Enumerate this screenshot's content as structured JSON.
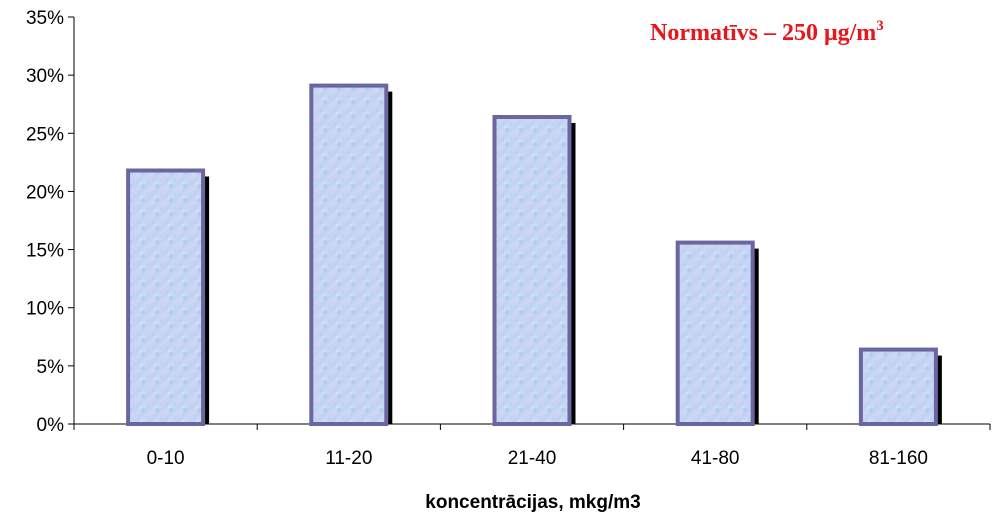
{
  "chart_data": {
    "type": "bar",
    "categories": [
      "0-10",
      "11-20",
      "21-40",
      "41-80",
      "81-160"
    ],
    "values": [
      21.8,
      29.1,
      26.4,
      15.6,
      6.4
    ],
    "xlabel": "koncentrācijas, mkg/m3",
    "ylabel": "",
    "ylim": [
      0,
      35
    ],
    "yticks": [
      "0%",
      "5%",
      "10%",
      "15%",
      "20%",
      "25%",
      "30%",
      "35%"
    ],
    "grid": false,
    "annotation": {
      "text": "Normatīvs – 250 μg/m",
      "superscript": "3",
      "color": "#e8161c"
    },
    "colors": {
      "bar_fill": "#c4d6f2",
      "bar_border": "#6a66a0",
      "bar_shadow": "#000000"
    }
  }
}
